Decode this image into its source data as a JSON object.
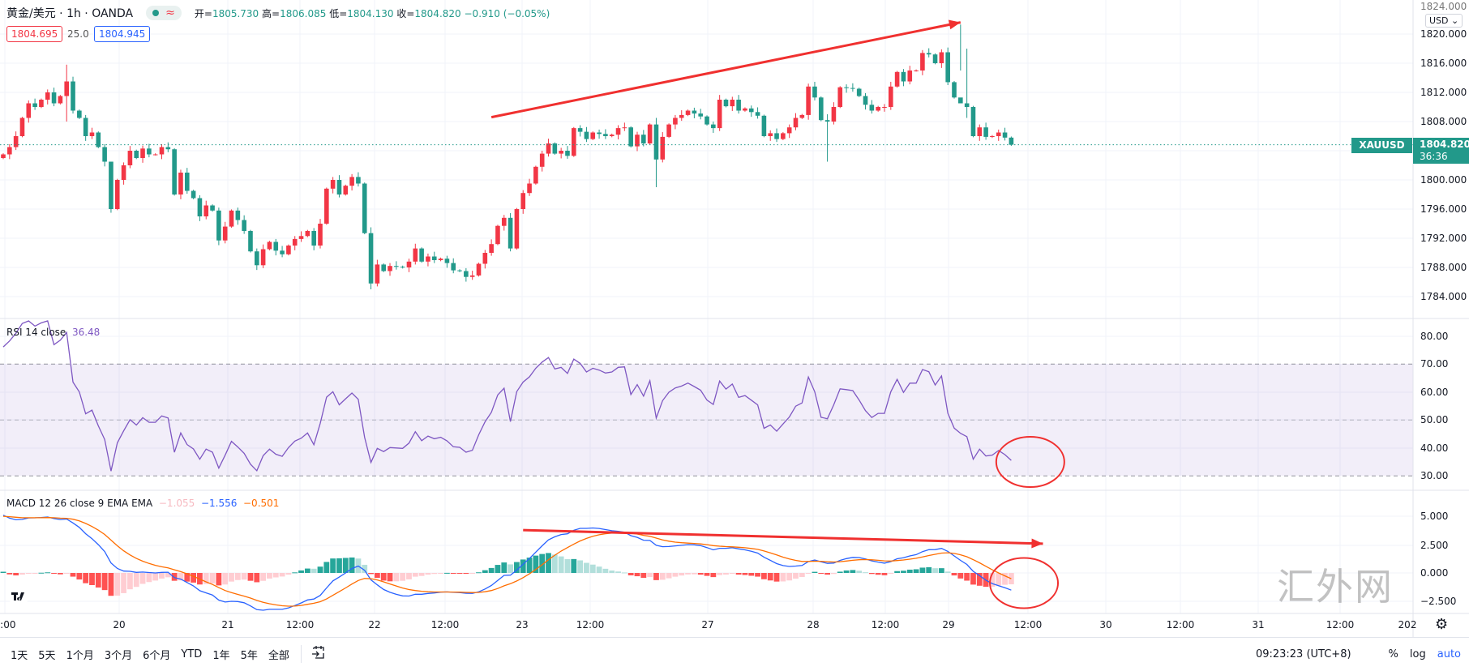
{
  "header": {
    "symbol_title": "黄金/美元 · 1h · OANDA",
    "status_icon": "market-open-dot",
    "delay_icon": "≈",
    "open_label": "开=",
    "open": "1805.730",
    "high_label": "高=",
    "high": "1806.085",
    "low_label": "低=",
    "low": "1804.130",
    "close_label": "收=",
    "close": "1804.820",
    "change": "−0.910 (−0.05%)",
    "sell_price": "1804.695",
    "spread": "25.0",
    "buy_price": "1804.945"
  },
  "price_axis": {
    "currency_button": "USD",
    "labels": [
      "1824.000",
      "1820.000",
      "1816.000",
      "1812.000",
      "1808.000",
      "1800.000",
      "1796.000",
      "1792.000",
      "1788.000",
      "1784.000"
    ],
    "symbol_tag": "XAUUSD",
    "last_price": "1804.820",
    "countdown": "36:36"
  },
  "rsi": {
    "legend": "RSI 14 close",
    "value": "36.48",
    "axis_labels": [
      "80.00",
      "70.00",
      "60.00",
      "50.00",
      "40.00",
      "30.00"
    ]
  },
  "macd": {
    "legend": "MACD 12 26 close 9 EMA EMA",
    "hist_value": "−1.055",
    "macd_value": "−1.556",
    "signal_value": "−0.501",
    "axis_labels": [
      "5.000",
      "2.500",
      "0.000",
      "−2.500"
    ]
  },
  "time_axis": {
    "labels": [
      "2:00",
      "20",
      "21",
      "12:00",
      "22",
      "12:00",
      "23",
      "12:00",
      "27",
      "28",
      "12:00",
      "29",
      "12:00",
      "30",
      "12:00",
      "31",
      "12:00",
      "202"
    ]
  },
  "bottom_bar": {
    "ranges": [
      "1天",
      "5天",
      "1个月",
      "3个月",
      "6个月",
      "YTD",
      "1年",
      "5年",
      "全部"
    ],
    "goto_icon": "goto-date-icon",
    "clock": "09:23:23 (UTC+8)",
    "percent": "%",
    "log": "log",
    "auto": "auto"
  },
  "watermark": "汇外网",
  "colors": {
    "up": "#f23645",
    "down": "#22998a",
    "rsi": "#7e57c2",
    "macd": "#2962ff",
    "signal": "#ff6d00",
    "annotation": "#f0302f"
  },
  "chart_data": {
    "type": "candlestick",
    "symbol": "XAUUSD",
    "interval": "1h",
    "ylim": [
      1782,
      1825
    ],
    "first_open": 1803,
    "closes": [
      1803.5,
      1804.5,
      1806,
      1808.5,
      1810.5,
      1810,
      1811,
      1812,
      1810.5,
      1811.5,
      1813.5,
      1809.5,
      1808.5,
      1806,
      1806.5,
      1804.5,
      1802.5,
      1796,
      1800,
      1802,
      1804,
      1803,
      1804.3,
      1803.5,
      1803.5,
      1804.5,
      1804.2,
      1798,
      1801,
      1798.5,
      1797.5,
      1795,
      1796.5,
      1795.8,
      1791.7,
      1793.6,
      1795.8,
      1794.5,
      1793,
      1790.2,
      1788.3,
      1790.5,
      1791.5,
      1790.3,
      1789.8,
      1791,
      1791.9,
      1792.3,
      1793,
      1791,
      1794,
      1798.8,
      1800,
      1798,
      1799.2,
      1800.4,
      1799.5,
      1792.7,
      1785.8,
      1788.4,
      1787.5,
      1788.2,
      1788.1,
      1788,
      1788.8,
      1790.6,
      1788.8,
      1789.5,
      1789,
      1789.2,
      1788.6,
      1787.6,
      1787.5,
      1786.7,
      1786.9,
      1788.5,
      1790,
      1791.2,
      1793.7,
      1794.8,
      1790.6,
      1796,
      1798.2,
      1799.5,
      1801.8,
      1803.6,
      1805,
      1803.6,
      1804,
      1803.3,
      1807.1,
      1806.6,
      1805.6,
      1806.5,
      1806.3,
      1806,
      1806.2,
      1807.1,
      1807.2,
      1804.6,
      1806.2,
      1805,
      1807.6,
      1802.8,
      1805.9,
      1807.6,
      1808.5,
      1808.9,
      1809.5,
      1809.1,
      1808.7,
      1807.6,
      1807.1,
      1811,
      1810.1,
      1811,
      1809.5,
      1809.8,
      1809.3,
      1808.8,
      1806,
      1806.4,
      1805.6,
      1806.4,
      1807.2,
      1808.5,
      1808.9,
      1812.8,
      1811.3,
      1808.2,
      1808,
      1810,
      1812.7,
      1812.6,
      1812.5,
      1811.5,
      1810.3,
      1809.5,
      1810,
      1810,
      1812.8,
      1814.8,
      1813.5,
      1815,
      1815,
      1817.4,
      1817.2,
      1816,
      1817.5,
      1813.4,
      1811.3,
      1810.5,
      1810,
      1806,
      1807.2,
      1805.9,
      1806,
      1806.5,
      1805.8,
      1804.82
    ],
    "wick_extra": 0.5,
    "notable_wicks": [
      {
        "i": 10,
        "high": 1815.8,
        "low": 1808
      },
      {
        "i": 17,
        "high": 1802.5,
        "low": 1795.5
      },
      {
        "i": 58,
        "high": 1793.5,
        "low": 1785
      },
      {
        "i": 103,
        "high": 1808.5,
        "low": 1799
      },
      {
        "i": 130,
        "high": 1809,
        "low": 1802.5
      },
      {
        "i": 151,
        "high": 1821.3,
        "low": 1815
      },
      {
        "i": 152,
        "high": 1818,
        "low": 1808.5
      }
    ],
    "indicators": {
      "rsi_period": 14,
      "rsi_seed_gain": 0.6,
      "rsi_seed_loss": 0.2,
      "rsi_levels": [
        70,
        50,
        30
      ],
      "rsi_ylim": [
        25,
        85
      ],
      "macd_fast": 12,
      "macd_slow": 26,
      "macd_signal": 9,
      "macd_seed_fast": 1803,
      "macd_seed_slow": 1797.5,
      "macd_seed_signal": 5,
      "macd_ylim": [
        -3.5,
        7
      ]
    },
    "annotations": [
      {
        "type": "arrow",
        "pane": "price",
        "from": {
          "i": 77,
          "price": 1808.6
        },
        "to": {
          "i": 151,
          "price": 1821.6
        }
      },
      {
        "type": "arrow",
        "pane": "macd",
        "from": {
          "i": 82,
          "value": 3.8
        },
        "to": {
          "i": 164,
          "value": 2.6
        }
      },
      {
        "type": "ellipse",
        "pane": "rsi",
        "center": {
          "i": 162,
          "value": 35
        }
      },
      {
        "type": "ellipse",
        "pane": "macd",
        "center": {
          "i": 161,
          "value": -0.9
        }
      }
    ]
  }
}
